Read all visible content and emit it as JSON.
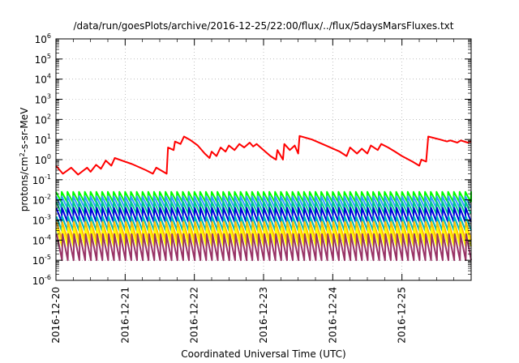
{
  "chart_data": {
    "type": "line",
    "title": "/data/run/goesPlots/archive/2016-12-25/22:00/flux/../flux/5daysMarsFluxes.txt",
    "xlabel": "Coordinated Universal Time (UTC)",
    "ylabel": {
      "base": "protons/cm",
      "sup": "2",
      "rest": "-s-sr-MeV"
    },
    "x_range_days": [
      0,
      6
    ],
    "x_ticks": [
      "2016-12-20",
      "2016-12-21",
      "2016-12-22",
      "2016-12-23",
      "2016-12-24",
      "2016-12-25"
    ],
    "y_scale": "log",
    "y_range_exponent": [
      -6,
      6
    ],
    "y_ticks": [
      {
        "base": "10",
        "exp": "-6"
      },
      {
        "base": "10",
        "exp": "-5"
      },
      {
        "base": "10",
        "exp": "-4"
      },
      {
        "base": "10",
        "exp": "-3"
      },
      {
        "base": "10",
        "exp": "-2"
      },
      {
        "base": "10",
        "exp": "-1"
      },
      {
        "base": "10",
        "exp": "0"
      },
      {
        "base": "10",
        "exp": "1"
      },
      {
        "base": "10",
        "exp": "2"
      },
      {
        "base": "10",
        "exp": "3"
      },
      {
        "base": "10",
        "exp": "4"
      },
      {
        "base": "10",
        "exp": "5"
      },
      {
        "base": "10",
        "exp": "6"
      }
    ],
    "grid": true,
    "legend": "none",
    "series": [
      {
        "color": "#ff0000",
        "points": [
          [
            0.0,
            0.5
          ],
          [
            0.1,
            0.2
          ],
          [
            0.22,
            0.4
          ],
          [
            0.32,
            0.18
          ],
          [
            0.45,
            0.4
          ],
          [
            0.5,
            0.25
          ],
          [
            0.58,
            0.55
          ],
          [
            0.65,
            0.35
          ],
          [
            0.72,
            0.9
          ],
          [
            0.8,
            0.5
          ],
          [
            0.85,
            1.2
          ],
          [
            0.95,
            0.9
          ],
          [
            1.1,
            0.6
          ],
          [
            1.3,
            0.3
          ],
          [
            1.4,
            0.2
          ],
          [
            1.45,
            0.4
          ],
          [
            1.6,
            0.2
          ],
          [
            1.62,
            4.0
          ],
          [
            1.7,
            3.0
          ],
          [
            1.72,
            8.0
          ],
          [
            1.8,
            6.0
          ],
          [
            1.85,
            14.0
          ],
          [
            1.95,
            9.0
          ],
          [
            2.05,
            5.0
          ],
          [
            2.15,
            2.0
          ],
          [
            2.22,
            1.2
          ],
          [
            2.25,
            2.5
          ],
          [
            2.32,
            1.5
          ],
          [
            2.38,
            4.0
          ],
          [
            2.45,
            2.5
          ],
          [
            2.5,
            5.0
          ],
          [
            2.58,
            3.0
          ],
          [
            2.65,
            6.0
          ],
          [
            2.72,
            4.0
          ],
          [
            2.8,
            7.0
          ],
          [
            2.85,
            4.5
          ],
          [
            2.9,
            6.0
          ],
          [
            3.0,
            3.0
          ],
          [
            3.1,
            1.5
          ],
          [
            3.18,
            1.0
          ],
          [
            3.2,
            3.0
          ],
          [
            3.28,
            1.0
          ],
          [
            3.3,
            6.0
          ],
          [
            3.38,
            3.0
          ],
          [
            3.45,
            5.0
          ],
          [
            3.5,
            2.0
          ],
          [
            3.52,
            15.0
          ],
          [
            3.7,
            10.0
          ],
          [
            3.9,
            5.0
          ],
          [
            4.1,
            2.5
          ],
          [
            4.2,
            1.5
          ],
          [
            4.25,
            4.0
          ],
          [
            4.35,
            2.0
          ],
          [
            4.42,
            3.5
          ],
          [
            4.5,
            2.0
          ],
          [
            4.55,
            5.0
          ],
          [
            4.65,
            3.0
          ],
          [
            4.7,
            6.0
          ],
          [
            4.8,
            4.0
          ],
          [
            4.9,
            2.5
          ],
          [
            5.0,
            1.5
          ],
          [
            5.15,
            0.8
          ],
          [
            5.25,
            0.5
          ],
          [
            5.28,
            1.0
          ],
          [
            5.35,
            0.8
          ],
          [
            5.38,
            14.0
          ],
          [
            5.55,
            10.0
          ],
          [
            5.65,
            8.0
          ],
          [
            5.7,
            9.0
          ],
          [
            5.8,
            7.0
          ],
          [
            5.85,
            9.0
          ],
          [
            5.95,
            7.0
          ],
          [
            6.0,
            8.0
          ]
        ]
      },
      {
        "color": "#00ff00",
        "amplitude_cycles_per_day": 12,
        "low": 0.008,
        "high": 0.025,
        "phase": 0.0
      },
      {
        "color": "#3399ff",
        "amplitude_cycles_per_day": 12,
        "low": 0.004,
        "high": 0.015,
        "phase": 0.02
      },
      {
        "color": "#00cc88",
        "amplitude_cycles_per_day": 12,
        "low": 0.002,
        "high": 0.008,
        "phase": 0.04
      },
      {
        "color": "#0000dd",
        "amplitude_cycles_per_day": 12,
        "low": 0.0008,
        "high": 0.004,
        "phase": 0.06
      },
      {
        "color": "#00bbbb",
        "amplitude_cycles_per_day": 12,
        "low": 0.0003,
        "high": 0.0015,
        "phase": 0.08
      },
      {
        "color": "#ffbb00",
        "amplitude_cycles_per_day": 12,
        "low": 0.0001,
        "high": 0.0008,
        "phase": 0.1
      },
      {
        "color": "#ffff00",
        "amplitude_cycles_per_day": 12,
        "low": 5e-05,
        "high": 0.0004,
        "phase": 0.12
      },
      {
        "color": "#993366",
        "amplitude_cycles_per_day": 12,
        "low": 1e-05,
        "high": 0.0002,
        "phase": 0.14
      }
    ]
  }
}
